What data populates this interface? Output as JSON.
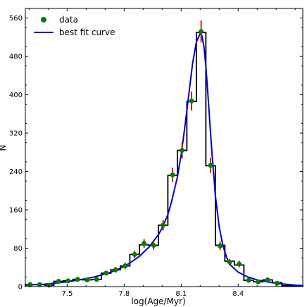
{
  "chart_data": {
    "type": "line",
    "title": "",
    "xlabel": "log(Age/Myr)",
    "ylabel": "N",
    "xlim": [
      7.28,
      8.74
    ],
    "ylim": [
      0,
      580
    ],
    "xticks": [
      7.5,
      7.8,
      8.1,
      8.4
    ],
    "xtick_labels": [
      "7.5",
      "7.8",
      "8.1",
      "8.4"
    ],
    "yticks": [
      0,
      80,
      160,
      240,
      320,
      400,
      480,
      560
    ],
    "ytick_labels": [
      "0",
      "80",
      "160",
      "240",
      "320",
      "400",
      "480",
      "560"
    ],
    "grid": false,
    "legend": {
      "placement": "top-left",
      "entries": [
        {
          "label": "data",
          "marker": "circle",
          "color": "#008000"
        },
        {
          "label": "best fit curve",
          "marker": "line",
          "color": "#0000cc"
        }
      ]
    },
    "histogram": {
      "color": "#000000",
      "bin_edges": [
        7.28,
        7.33,
        7.38,
        7.43,
        7.48,
        7.53,
        7.58,
        7.63,
        7.68,
        7.73,
        7.78,
        7.83,
        7.88,
        7.93,
        7.98,
        8.03,
        8.08,
        8.13,
        8.18,
        8.23,
        8.28,
        8.33,
        8.38,
        8.43,
        8.48,
        8.53,
        8.58,
        8.63,
        8.68,
        8.74
      ],
      "counts": [
        4,
        4,
        3,
        11,
        12,
        15,
        14,
        15,
        28,
        35,
        43,
        67,
        87,
        86,
        128,
        232,
        284,
        386,
        530,
        252,
        86,
        53,
        45,
        13,
        10,
        14,
        8,
        2,
        2
      ]
    },
    "series": [
      {
        "name": "data",
        "kind": "scatter",
        "color": "#008000",
        "error_color": "#e00000",
        "x": [
          7.305,
          7.355,
          7.405,
          7.455,
          7.505,
          7.555,
          7.605,
          7.655,
          7.705,
          7.755,
          7.805,
          7.855,
          7.905,
          7.955,
          8.005,
          8.055,
          8.105,
          8.155,
          8.205,
          8.255,
          8.305,
          8.355,
          8.405,
          8.455,
          8.505,
          8.555,
          8.605
        ],
        "y": [
          4,
          4,
          3,
          11,
          12,
          15,
          14,
          15,
          28,
          35,
          43,
          67,
          90,
          86,
          128,
          233,
          284,
          387,
          532,
          253,
          85,
          51,
          47,
          13,
          10,
          14,
          7
        ],
        "yerr": [
          2,
          2,
          2,
          3,
          3,
          4,
          4,
          4,
          5,
          6,
          7,
          8,
          9,
          9,
          11,
          15,
          17,
          20,
          23,
          16,
          9,
          7,
          7,
          4,
          3,
          4,
          3
        ]
      },
      {
        "name": "best fit curve",
        "kind": "line",
        "color": "#0000cc",
        "x": [
          7.28,
          7.33,
          7.38,
          7.43,
          7.48,
          7.53,
          7.58,
          7.63,
          7.68,
          7.73,
          7.78,
          7.83,
          7.88,
          7.93,
          7.98,
          8.0,
          8.03,
          8.05,
          8.08,
          8.1,
          8.12,
          8.14,
          8.16,
          8.18,
          8.2,
          8.21,
          8.22,
          8.23,
          8.24,
          8.26,
          8.28,
          8.3,
          8.32,
          8.34,
          8.36,
          8.4,
          8.45,
          8.5,
          8.55,
          8.6,
          8.65,
          8.7,
          8.74
        ],
        "y": [
          3,
          4,
          5,
          7,
          9,
          12,
          15,
          19,
          24,
          30,
          38,
          49,
          63,
          82,
          108,
          122,
          150,
          178,
          228,
          275,
          335,
          400,
          465,
          510,
          528,
          522,
          500,
          460,
          405,
          290,
          190,
          125,
          85,
          60,
          45,
          30,
          20,
          14,
          10,
          7,
          5,
          3,
          2
        ]
      }
    ]
  }
}
